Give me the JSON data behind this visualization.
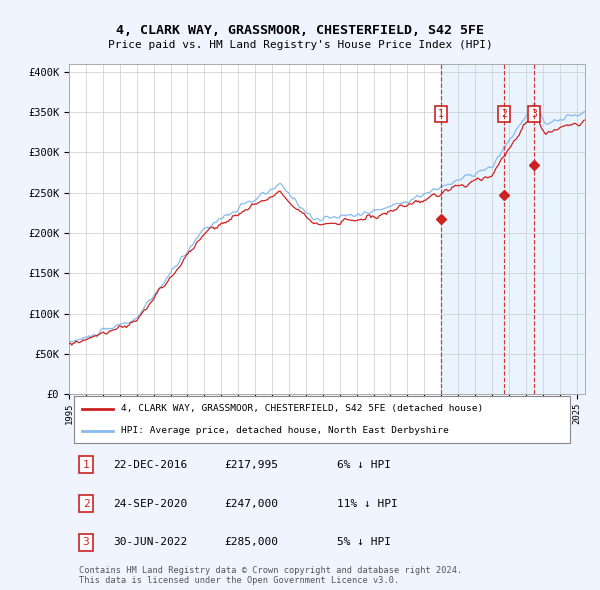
{
  "title": "4, CLARK WAY, GRASSMOOR, CHESTERFIELD, S42 5FE",
  "subtitle": "Price paid vs. HM Land Registry's House Price Index (HPI)",
  "ylabel_ticks": [
    "£0",
    "£50K",
    "£100K",
    "£150K",
    "£200K",
    "£250K",
    "£300K",
    "£350K",
    "£400K"
  ],
  "ytick_vals": [
    0,
    50000,
    100000,
    150000,
    200000,
    250000,
    300000,
    350000,
    400000
  ],
  "ylim": [
    0,
    410000
  ],
  "xlim_start": 1995.0,
  "xlim_end": 2025.5,
  "sale_dates": [
    2016.97,
    2020.73,
    2022.5
  ],
  "sale_labels": [
    "1",
    "2",
    "3"
  ],
  "sale_prices": [
    217995,
    247000,
    285000
  ],
  "legend_house": "4, CLARK WAY, GRASSMOOR, CHESTERFIELD, S42 5FE (detached house)",
  "legend_hpi": "HPI: Average price, detached house, North East Derbyshire",
  "table_rows": [
    [
      "1",
      "22-DEC-2016",
      "£217,995",
      "6% ↓ HPI"
    ],
    [
      "2",
      "24-SEP-2020",
      "£247,000",
      "11% ↓ HPI"
    ],
    [
      "3",
      "30-JUN-2022",
      "£285,000",
      "5% ↓ HPI"
    ]
  ],
  "footer1": "Contains HM Land Registry data © Crown copyright and database right 2024.",
  "footer2": "This data is licensed under the Open Government Licence v3.0.",
  "bg_color": "#f0f4ff",
  "plot_bg": "#ffffff",
  "grid_color": "#cccccc",
  "hpi_color": "#88bbee",
  "house_color": "#cc2222",
  "vline_color": "#cc2222",
  "box_color": "#cc2222",
  "shade_color": "#ddeeff"
}
